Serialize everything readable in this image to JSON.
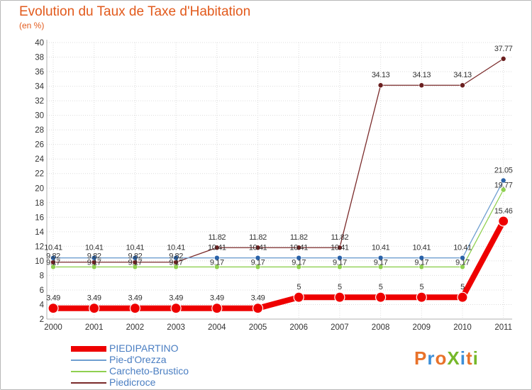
{
  "title": "Evolution du Taux de Taxe d'Habitation",
  "subtitle": "(en %)",
  "logo_text": "ProXiti",
  "colors": {
    "title": "#e25a1c",
    "axis": "#c0c0c0",
    "grid": "#d8d8d8",
    "legend_text": "#4a7ec2",
    "logo": [
      "#e8722a",
      "#3d8fd8",
      "#e8722a",
      "#76b82a",
      "#3d8fd8",
      "#e8722a",
      "#76b82a"
    ]
  },
  "chart_data": {
    "type": "line",
    "title": "Evolution du Taux de Taxe d'Habitation",
    "ylabel": "(en %)",
    "xlabel": "",
    "categories": [
      "2000",
      "2001",
      "2002",
      "2003",
      "2004",
      "2005",
      "2006",
      "2007",
      "2008",
      "2009",
      "2010",
      "2011"
    ],
    "ylim": [
      2,
      40
    ],
    "yticks": [
      2,
      4,
      6,
      8,
      10,
      12,
      14,
      16,
      18,
      20,
      22,
      24,
      26,
      28,
      30,
      32,
      34,
      36,
      38,
      40
    ],
    "grid": true,
    "legend_position": "bottom-left",
    "series": [
      {
        "name": "PIEDIPARTINO",
        "color": "#ee0000",
        "width": 8,
        "marker": 7,
        "values": [
          3.49,
          3.49,
          3.49,
          3.49,
          3.49,
          3.49,
          5,
          5,
          5,
          5,
          5,
          15.46
        ],
        "labels": [
          "3.49",
          "3.49",
          "3.49",
          "3.49",
          "3.49",
          "3.49",
          "5",
          "5",
          "5",
          "5",
          "5",
          "15.46"
        ]
      },
      {
        "name": "Pie-d'Orezza",
        "color": "#6f9fd0",
        "width": 1.3,
        "marker": 3.5,
        "values": [
          10.41,
          10.41,
          10.41,
          10.41,
          10.41,
          10.41,
          10.41,
          10.41,
          10.41,
          10.41,
          10.41,
          21.05
        ],
        "labels": [
          "10.41",
          "10.41",
          "10.41",
          "10.41",
          "10.41",
          "10.41",
          "10.41",
          "10.41",
          "10.41",
          "10.41",
          "10.41",
          "21.05"
        ]
      },
      {
        "name": "Carcheto-Brustico",
        "color": "#8fd050",
        "width": 1.3,
        "marker": 3.5,
        "values": [
          9.17,
          9.17,
          9.17,
          9.17,
          9.17,
          9.17,
          9.17,
          9.17,
          9.17,
          9.17,
          9.17,
          19.77
        ],
        "labels": [
          "9.17",
          "9.17",
          "9.17",
          "9.17",
          "9.17",
          "9.17",
          "9.17",
          "9.17",
          "9.17",
          "9.17",
          "9.17",
          "19.77"
        ]
      },
      {
        "name": "Piedicroce",
        "color": "#7a2a2a",
        "width": 1.3,
        "marker": 3.5,
        "values": [
          9.82,
          9.82,
          9.82,
          9.82,
          11.82,
          11.82,
          11.82,
          11.82,
          34.13,
          34.13,
          34.13,
          37.77
        ],
        "labels": [
          "9.82",
          "9.82",
          "9.82",
          "9.82",
          "11.82",
          "11.82",
          "11.82",
          "11.82",
          "34.13",
          "34.13",
          "34.13",
          "37.77"
        ]
      }
    ]
  }
}
